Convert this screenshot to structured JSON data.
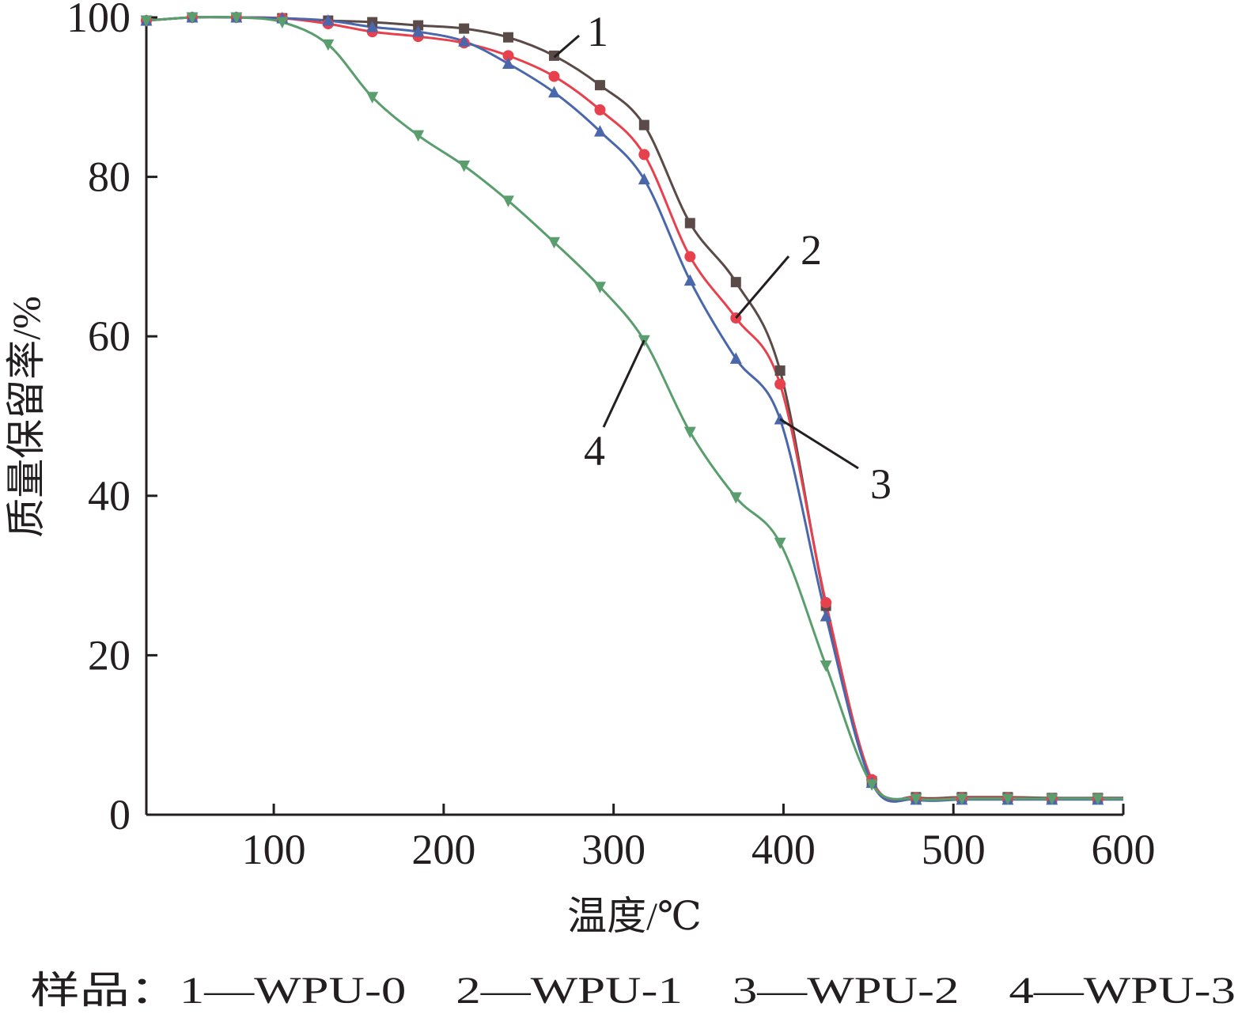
{
  "chart_data": {
    "type": "line",
    "xlabel": "温度/℃",
    "ylabel": "质量保留率/%",
    "xlim": [
      25,
      600
    ],
    "ylim": [
      0,
      100
    ],
    "xticks": [
      100,
      200,
      300,
      400,
      500,
      600
    ],
    "yticks": [
      0,
      20,
      40,
      60,
      80,
      100
    ],
    "grid": false,
    "legend_position": "bottom",
    "legend_text": "样品：1—WPU-0　2—WPU-1　3—WPU-2　4—WPU-3",
    "series": [
      {
        "name": "1",
        "color": "#5a4a48",
        "marker": "square",
        "label_at": [
          265,
          95
        ],
        "label_pos": [
          742,
          40
        ],
        "x": [
          25,
          52,
          78,
          105,
          132,
          158,
          185,
          212,
          238,
          265,
          292,
          318,
          345,
          372,
          398,
          425,
          452,
          478,
          505,
          532,
          558,
          585
        ],
        "y": [
          99.6,
          100,
          100,
          99.9,
          99.6,
          99.4,
          99.0,
          98.6,
          97.5,
          95.2,
          91.5,
          86.5,
          74.2,
          66.8,
          55.7,
          26.2,
          4.2,
          2.2,
          2.2,
          2.2,
          2.1,
          2.1
        ]
      },
      {
        "name": "2",
        "color": "#e8414e",
        "marker": "circle",
        "label_at": [
          372,
          62.3
        ],
        "label_pos": [
          1012,
          316
        ],
        "x": [
          25,
          52,
          78,
          105,
          132,
          158,
          185,
          212,
          238,
          265,
          292,
          318,
          345,
          372,
          398,
          425,
          452,
          478,
          505,
          532,
          558,
          585
        ],
        "y": [
          99.6,
          100,
          100,
          99.9,
          99.2,
          98.2,
          97.6,
          96.8,
          95.2,
          92.6,
          88.4,
          82.8,
          70.0,
          62.3,
          54.0,
          26.6,
          4.4,
          2.1,
          2.1,
          2.1,
          2.0,
          2.0
        ]
      },
      {
        "name": "3",
        "color": "#4a67ab",
        "marker": "triangle-up",
        "label_at": [
          398,
          49.6
        ],
        "label_pos": [
          1100,
          612
        ],
        "x": [
          25,
          52,
          78,
          105,
          132,
          158,
          185,
          212,
          238,
          265,
          292,
          318,
          345,
          372,
          398,
          425,
          452,
          478,
          505,
          532,
          558,
          585
        ],
        "y": [
          99.6,
          100,
          100,
          99.9,
          99.6,
          98.8,
          98.2,
          97.0,
          94.2,
          90.6,
          85.7,
          79.7,
          67.0,
          57.2,
          49.6,
          24.9,
          4.0,
          1.9,
          1.9,
          1.9,
          1.9,
          1.9
        ]
      },
      {
        "name": "4",
        "color": "#5a9e6e",
        "marker": "triangle-down",
        "label_at": [
          318,
          59.5
        ],
        "label_pos": [
          738,
          570
        ],
        "x": [
          25,
          52,
          78,
          105,
          132,
          158,
          185,
          212,
          238,
          265,
          292,
          318,
          345,
          372,
          398,
          425,
          452,
          478,
          505,
          532,
          558,
          585
        ],
        "y": [
          99.6,
          100,
          100,
          99.4,
          96.6,
          90.0,
          85.2,
          81.4,
          77.0,
          71.8,
          66.2,
          59.5,
          48.0,
          39.8,
          34.1,
          18.7,
          3.8,
          2.0,
          2.0,
          2.0,
          2.0,
          2.0
        ]
      }
    ]
  }
}
